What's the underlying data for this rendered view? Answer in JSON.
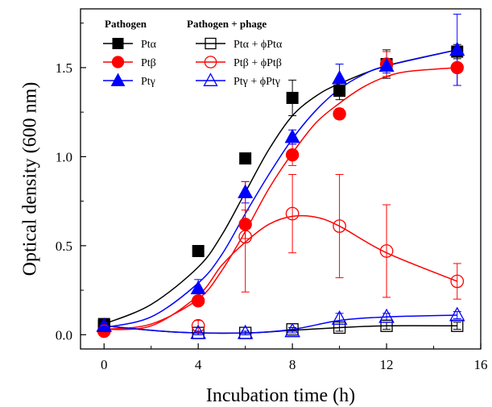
{
  "chart_data": {
    "type": "line",
    "xlabel": "Incubation time (h)",
    "ylabel": "Optical density (600 nm)",
    "xlim": [
      -1,
      16
    ],
    "ylim": [
      -0.08,
      1.83
    ],
    "xticks": [
      0,
      4,
      8,
      12,
      16
    ],
    "yticks": [
      0.0,
      0.5,
      1.0,
      1.5
    ],
    "x_tick_labels": [
      "0",
      "4",
      "8",
      "12",
      "16"
    ],
    "y_tick_labels": [
      "0.0",
      "0.5",
      "1.0",
      "1.5"
    ],
    "grid": false,
    "legend_headers": [
      "Pathogen",
      "Pathogen + phage"
    ],
    "legend_placement": "top-left",
    "series": [
      {
        "name": "Ptα",
        "color": "#000000",
        "marker": "square",
        "filled": true,
        "legend_group": 0,
        "points": [
          [
            0,
            0.06
          ],
          [
            4,
            0.47
          ],
          [
            6,
            0.99
          ],
          [
            8,
            1.33
          ],
          [
            10,
            1.37
          ],
          [
            12,
            1.52
          ],
          [
            15,
            1.59
          ]
        ],
        "errors": [
          0.01,
          0.02,
          0.03,
          0.1,
          0.05,
          0.08,
          0.04
        ],
        "curve": [
          [
            0,
            0.06
          ],
          [
            2,
            0.17
          ],
          [
            4,
            0.38
          ],
          [
            5,
            0.56
          ],
          [
            6,
            0.8
          ],
          [
            7,
            1.04
          ],
          [
            8,
            1.23
          ],
          [
            9,
            1.34
          ],
          [
            10,
            1.41
          ],
          [
            12,
            1.51
          ],
          [
            15,
            1.6
          ]
        ]
      },
      {
        "name": "Ptβ",
        "color": "#ff0000",
        "marker": "circle",
        "filled": true,
        "legend_group": 0,
        "points": [
          [
            0,
            0.02
          ],
          [
            4,
            0.19
          ],
          [
            6,
            0.62
          ],
          [
            8,
            1.01
          ],
          [
            10,
            1.24
          ],
          [
            12,
            1.52
          ],
          [
            15,
            1.5
          ]
        ],
        "errors": [
          0.01,
          0.02,
          0.08,
          0.06,
          0.03,
          0.07,
          0.1
        ],
        "curve": [
          [
            0,
            0.03
          ],
          [
            2,
            0.06
          ],
          [
            4,
            0.2
          ],
          [
            5,
            0.36
          ],
          [
            6,
            0.58
          ],
          [
            7,
            0.82
          ],
          [
            8,
            1.02
          ],
          [
            9,
            1.19
          ],
          [
            10,
            1.3
          ],
          [
            11,
            1.39
          ],
          [
            12,
            1.45
          ],
          [
            13,
            1.48
          ],
          [
            15,
            1.5
          ]
        ]
      },
      {
        "name": "Ptγ",
        "color": "#0000ff",
        "marker": "triangle",
        "filled": true,
        "legend_group": 0,
        "points": [
          [
            0,
            0.05
          ],
          [
            4,
            0.26
          ],
          [
            6,
            0.8
          ],
          [
            8,
            1.11
          ],
          [
            10,
            1.44
          ],
          [
            12,
            1.51
          ],
          [
            15,
            1.6
          ]
        ],
        "errors": [
          0.01,
          0.05,
          0.06,
          0.04,
          0.08,
          0.04,
          0.2
        ],
        "curve": [
          [
            0,
            0.04
          ],
          [
            2,
            0.1
          ],
          [
            4,
            0.29
          ],
          [
            5,
            0.45
          ],
          [
            6,
            0.68
          ],
          [
            7,
            0.9
          ],
          [
            8,
            1.1
          ],
          [
            9,
            1.26
          ],
          [
            10,
            1.38
          ],
          [
            11,
            1.46
          ],
          [
            12,
            1.51
          ],
          [
            15,
            1.6
          ]
        ]
      },
      {
        "name": "Ptα + ϕPtα",
        "color": "#000000",
        "marker": "square",
        "filled": false,
        "legend_group": 1,
        "points": [
          [
            0,
            0.05
          ],
          [
            4,
            0.01
          ],
          [
            6,
            0.01
          ],
          [
            8,
            0.03
          ],
          [
            10,
            0.04
          ],
          [
            12,
            0.05
          ],
          [
            15,
            0.05
          ]
        ],
        "errors": [
          0.01,
          0.01,
          0.01,
          0.01,
          0.02,
          0.02,
          0.02
        ],
        "curve": [
          [
            0,
            0.05
          ],
          [
            3,
            0.015
          ],
          [
            6,
            0.01
          ],
          [
            8,
            0.025
          ],
          [
            10,
            0.04
          ],
          [
            12,
            0.05
          ],
          [
            15,
            0.05
          ]
        ]
      },
      {
        "name": "Ptβ + ϕPtβ",
        "color": "#ff0000",
        "marker": "circle",
        "filled": false,
        "legend_group": 1,
        "points": [
          [
            0,
            0.02
          ],
          [
            4,
            0.05
          ],
          [
            6,
            0.55
          ],
          [
            8,
            0.68
          ],
          [
            10,
            0.61
          ],
          [
            12,
            0.47
          ],
          [
            15,
            0.3
          ]
        ],
        "errors": [
          0.01,
          0.03,
          0.31,
          0.22,
          0.29,
          0.26,
          0.1
        ],
        "curve": [
          [
            0,
            0.03
          ],
          [
            2,
            0.05
          ],
          [
            4,
            0.22
          ],
          [
            5,
            0.39
          ],
          [
            6,
            0.52
          ],
          [
            7,
            0.62
          ],
          [
            8,
            0.665
          ],
          [
            9,
            0.66
          ],
          [
            10,
            0.61
          ],
          [
            12,
            0.46
          ],
          [
            15,
            0.3
          ]
        ]
      },
      {
        "name": "Ptγ + ϕPtγ",
        "color": "#0000ff",
        "marker": "triangle",
        "filled": false,
        "legend_group": 1,
        "points": [
          [
            0,
            0.05
          ],
          [
            4,
            0.01
          ],
          [
            6,
            0.01
          ],
          [
            8,
            0.02
          ],
          [
            10,
            0.09
          ],
          [
            12,
            0.1
          ],
          [
            15,
            0.11
          ]
        ],
        "errors": [
          0.01,
          0.01,
          0.01,
          0.01,
          0.03,
          0.02,
          0.02
        ],
        "curve": [
          [
            0,
            0.05
          ],
          [
            3,
            0.015
          ],
          [
            6,
            0.01
          ],
          [
            8,
            0.03
          ],
          [
            10,
            0.08
          ],
          [
            12,
            0.1
          ],
          [
            15,
            0.11
          ]
        ]
      }
    ]
  }
}
